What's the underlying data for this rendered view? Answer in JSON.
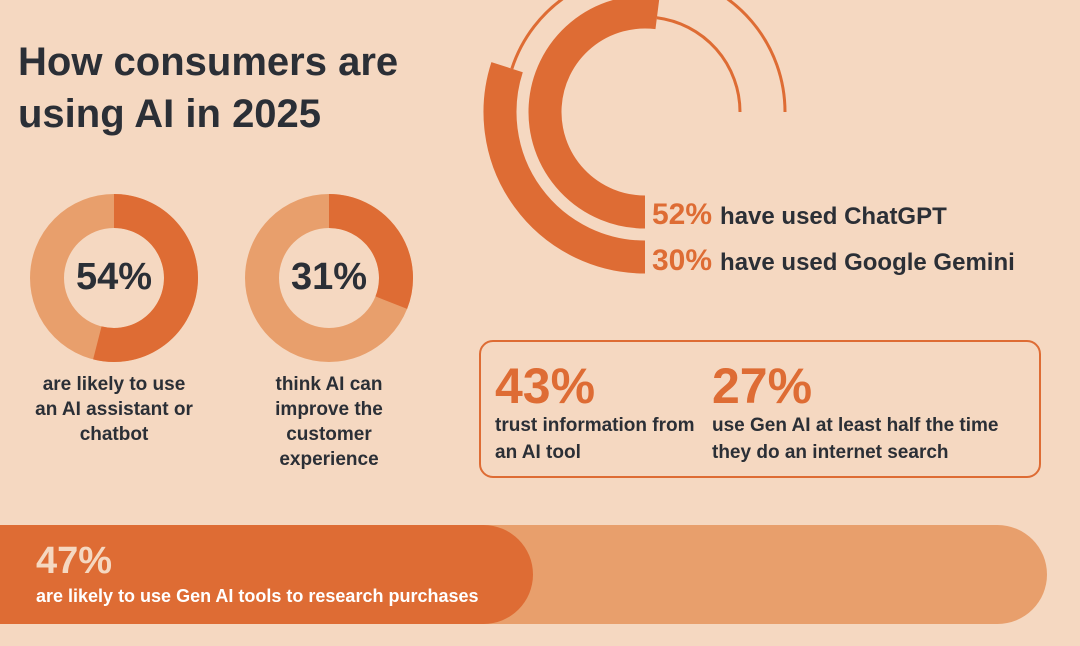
{
  "title": "How consumers are using AI in 2025",
  "colors": {
    "background": "#F5D8C1",
    "primary": "#DE6C34",
    "secondary": "#E89F6C",
    "text": "#2B2F36"
  },
  "chart_data": [
    {
      "type": "pie",
      "subtype": "donut",
      "value": 54,
      "label": "54%",
      "caption": "are likely to use an AI assistant or chatbot"
    },
    {
      "type": "pie",
      "subtype": "donut",
      "value": 31,
      "label": "31%",
      "caption": "think AI can improve the customer experience"
    },
    {
      "type": "radial-bar",
      "series": [
        {
          "name": "have used ChatGPT",
          "value": 52,
          "label": "52%"
        },
        {
          "name": "have used Google Gemini",
          "value": 30,
          "label": "30%"
        }
      ]
    },
    {
      "type": "stat",
      "items": [
        {
          "value": 43,
          "label": "43%",
          "text": "trust information from an AI tool"
        },
        {
          "value": 27,
          "label": "27%",
          "text": "use Gen AI at least half the time they do an internet search"
        }
      ]
    },
    {
      "type": "bar",
      "subtype": "progress",
      "value": 47,
      "label": "47%",
      "caption": "are likely to use Gen AI tools to research purchases"
    }
  ]
}
